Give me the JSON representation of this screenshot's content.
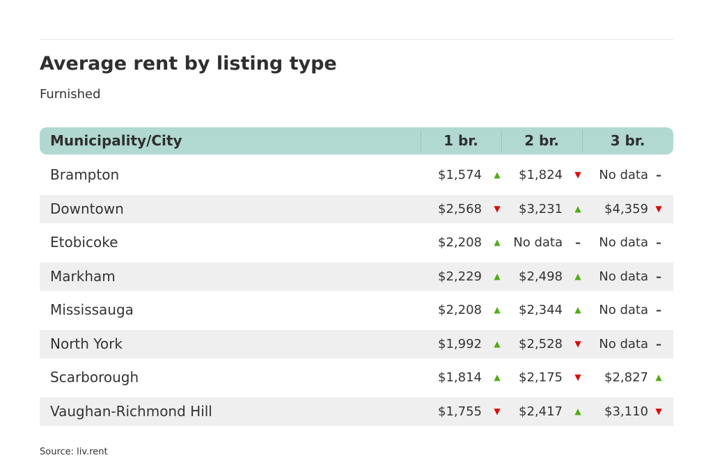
{
  "title": "Average rent by listing type",
  "subtitle": "Furnished",
  "source": "Source: liv.rent",
  "colors": {
    "header": "#b1d9d1",
    "up": "#4caf10",
    "down": "#e60000",
    "alt_row": "#efefef"
  },
  "chart_data": {
    "type": "table",
    "columns": [
      "Municipality/City",
      "1 br.",
      "2 br.",
      "3 br."
    ],
    "rows": [
      {
        "city": "Brampton",
        "values": [
          "$1,574",
          "$1,824",
          "No data"
        ],
        "trend": [
          "up",
          "down",
          "flat"
        ]
      },
      {
        "city": "Downtown",
        "values": [
          "$2,568",
          "$3,231",
          "$4,359"
        ],
        "trend": [
          "down",
          "up",
          "down"
        ]
      },
      {
        "city": "Etobicoke",
        "values": [
          "$2,208",
          "No data",
          "No data"
        ],
        "trend": [
          "up",
          "flat",
          "flat"
        ]
      },
      {
        "city": "Markham",
        "values": [
          "$2,229",
          "$2,498",
          "No data"
        ],
        "trend": [
          "up",
          "up",
          "flat"
        ]
      },
      {
        "city": "Mississauga",
        "values": [
          "$2,208",
          "$2,344",
          "No data"
        ],
        "trend": [
          "up",
          "up",
          "flat"
        ]
      },
      {
        "city": "North York",
        "values": [
          "$1,992",
          "$2,528",
          "No data"
        ],
        "trend": [
          "up",
          "down",
          "flat"
        ]
      },
      {
        "city": "Scarborough",
        "values": [
          "$1,814",
          "$2,175",
          "$2,827"
        ],
        "trend": [
          "up",
          "down",
          "up"
        ]
      },
      {
        "city": "Vaughan-Richmond Hill",
        "values": [
          "$1,755",
          "$2,417",
          "$3,110"
        ],
        "trend": [
          "down",
          "up",
          "down"
        ]
      }
    ]
  }
}
